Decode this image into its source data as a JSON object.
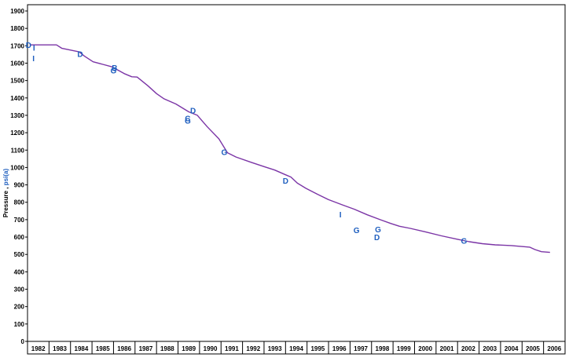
{
  "chart_data": {
    "type": "line",
    "title": "",
    "xlabel": "",
    "ylabel_prefix": "Pressure , ",
    "ylabel_unit": "psi(a)",
    "xlim": [
      1982,
      2007
    ],
    "ylim": [
      0,
      1900
    ],
    "ytick_step": 100,
    "x_tick_labels": [
      "1982",
      "1983",
      "1984",
      "1985",
      "1986",
      "1987",
      "1988",
      "1989",
      "1990",
      "1991",
      "1992",
      "1993",
      "1994",
      "1995",
      "1996",
      "1997",
      "1998",
      "1999",
      "2000",
      "2001",
      "2002",
      "2003",
      "2004",
      "2005",
      "2006"
    ],
    "grid": false,
    "colors": {
      "line": "#7b35a6",
      "markers": "#1f5fbf",
      "axis": "#000000",
      "ylabel_unit": "#1f5fbf"
    },
    "series": [
      {
        "values": [
          [
            1982.1,
            1705
          ],
          [
            1983.35,
            1705
          ],
          [
            1983.6,
            1685
          ],
          [
            1984.4,
            1665
          ],
          [
            1984.65,
            1640
          ],
          [
            1985.05,
            1608
          ],
          [
            1985.5,
            1593
          ],
          [
            1985.9,
            1580
          ],
          [
            1986.2,
            1560
          ],
          [
            1986.5,
            1540
          ],
          [
            1986.85,
            1522
          ],
          [
            1987.1,
            1520
          ],
          [
            1987.6,
            1470
          ],
          [
            1988.0,
            1425
          ],
          [
            1988.35,
            1395
          ],
          [
            1988.9,
            1365
          ],
          [
            1989.5,
            1320
          ],
          [
            1989.9,
            1300
          ],
          [
            1990.35,
            1235
          ],
          [
            1990.9,
            1165
          ],
          [
            1991.3,
            1085
          ],
          [
            1991.7,
            1060
          ],
          [
            1992.4,
            1030
          ],
          [
            1993.0,
            1005
          ],
          [
            1993.5,
            985
          ],
          [
            1994.0,
            958
          ],
          [
            1994.25,
            945
          ],
          [
            1994.55,
            910
          ],
          [
            1994.95,
            880
          ],
          [
            1995.5,
            845
          ],
          [
            1996.0,
            815
          ],
          [
            1996.65,
            785
          ],
          [
            1997.2,
            760
          ],
          [
            1997.8,
            728
          ],
          [
            1998.4,
            700
          ],
          [
            1998.9,
            678
          ],
          [
            1999.3,
            662
          ],
          [
            1999.8,
            650
          ],
          [
            2000.5,
            630
          ],
          [
            2001.25,
            607
          ],
          [
            2002.0,
            587
          ],
          [
            2002.55,
            573
          ],
          [
            2003.15,
            562
          ],
          [
            2003.75,
            555
          ],
          [
            2004.5,
            551
          ],
          [
            2005.35,
            542
          ],
          [
            2005.6,
            528
          ],
          [
            2005.9,
            516
          ],
          [
            2006.3,
            512
          ]
        ]
      }
    ],
    "markers": [
      {
        "label": "D",
        "x": 1982.05,
        "y": 1705
      },
      {
        "label": "I",
        "x": 1982.3,
        "y": 1690
      },
      {
        "label": "I",
        "x": 1982.28,
        "y": 1630
      },
      {
        "label": "D",
        "x": 1984.45,
        "y": 1655
      },
      {
        "label": "B",
        "x": 1986.05,
        "y": 1575
      },
      {
        "label": "G",
        "x": 1986.0,
        "y": 1560
      },
      {
        "label": "D",
        "x": 1989.7,
        "y": 1330
      },
      {
        "label": "C",
        "x": 1989.45,
        "y": 1285
      },
      {
        "label": "G",
        "x": 1989.45,
        "y": 1270
      },
      {
        "label": "G",
        "x": 1991.15,
        "y": 1090
      },
      {
        "label": "D",
        "x": 1994.0,
        "y": 925
      },
      {
        "label": "I",
        "x": 1996.55,
        "y": 730
      },
      {
        "label": "G",
        "x": 1997.3,
        "y": 640
      },
      {
        "label": "G",
        "x": 1998.3,
        "y": 645
      },
      {
        "label": "D",
        "x": 1998.25,
        "y": 600
      },
      {
        "label": "G",
        "x": 2002.3,
        "y": 580
      }
    ]
  }
}
